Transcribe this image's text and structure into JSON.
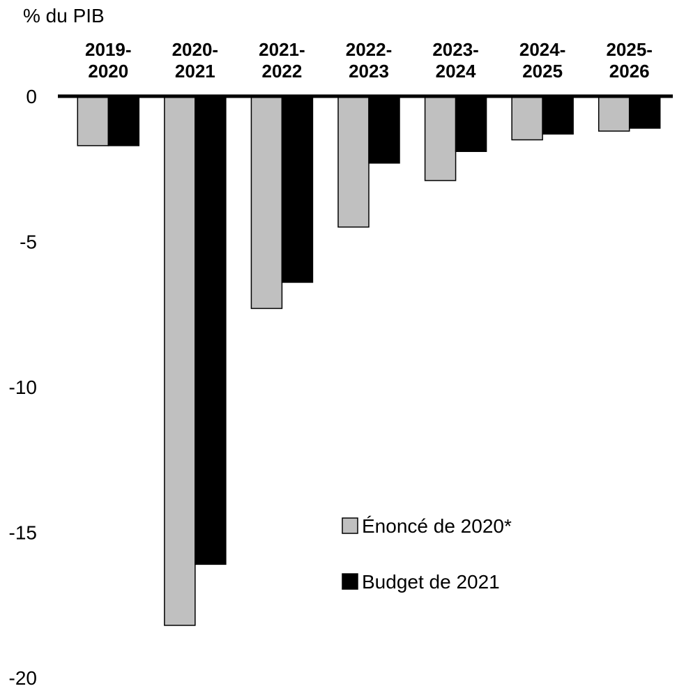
{
  "chart_data": {
    "type": "bar",
    "ylabel": "% du PIB",
    "categories": [
      [
        "2019-",
        "2020"
      ],
      [
        "2020-",
        "2021"
      ],
      [
        "2021-",
        "2022"
      ],
      [
        "2022-",
        "2023"
      ],
      [
        "2023-",
        "2024"
      ],
      [
        "2024-",
        "2025"
      ],
      [
        "2025-",
        "2026"
      ]
    ],
    "series": [
      {
        "name": "Énoncé de 2020*",
        "color": "#c0c0c0",
        "values": [
          -1.7,
          -18.2,
          -7.3,
          -4.5,
          -2.9,
          -1.5,
          -1.2
        ]
      },
      {
        "name": "Budget de 2021",
        "color": "#000000",
        "values": [
          -1.7,
          -16.1,
          -6.4,
          -2.3,
          -1.9,
          -1.3,
          -1.1
        ]
      }
    ],
    "ylim": [
      -20,
      0
    ],
    "yticks": [
      0,
      -5,
      -10,
      -15,
      -20
    ],
    "grid": false,
    "legend_position": "bottom-right"
  }
}
